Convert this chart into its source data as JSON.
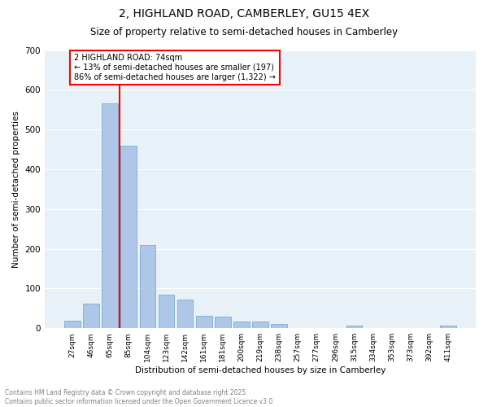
{
  "title1": "2, HIGHLAND ROAD, CAMBERLEY, GU15 4EX",
  "title2": "Size of property relative to semi-detached houses in Camberley",
  "xlabel": "Distribution of semi-detached houses by size in Camberley",
  "ylabel": "Number of semi-detached properties",
  "categories": [
    "27sqm",
    "46sqm",
    "65sqm",
    "85sqm",
    "104sqm",
    "123sqm",
    "142sqm",
    "161sqm",
    "181sqm",
    "200sqm",
    "219sqm",
    "238sqm",
    "257sqm",
    "277sqm",
    "296sqm",
    "315sqm",
    "334sqm",
    "353sqm",
    "373sqm",
    "392sqm",
    "411sqm"
  ],
  "values": [
    19,
    62,
    565,
    460,
    210,
    84,
    73,
    31,
    30,
    17,
    17,
    10,
    0,
    0,
    0,
    7,
    0,
    0,
    0,
    0,
    6
  ],
  "bar_color": "#aec6e8",
  "bar_edge_color": "#7aadd4",
  "bg_color": "#e8f0f8",
  "grid_color": "#ffffff",
  "red_line_x": 2.5,
  "annotation_text_line1": "2 HIGHLAND ROAD: 74sqm",
  "annotation_text_line2": "← 13% of semi-detached houses are smaller (197)",
  "annotation_text_line3": "86% of semi-detached houses are larger (1,322) →",
  "footer1": "Contains HM Land Registry data © Crown copyright and database right 2025.",
  "footer2": "Contains public sector information licensed under the Open Government Licence v3.0.",
  "ylim": [
    0,
    700
  ],
  "yticks": [
    0,
    100,
    200,
    300,
    400,
    500,
    600,
    700
  ]
}
